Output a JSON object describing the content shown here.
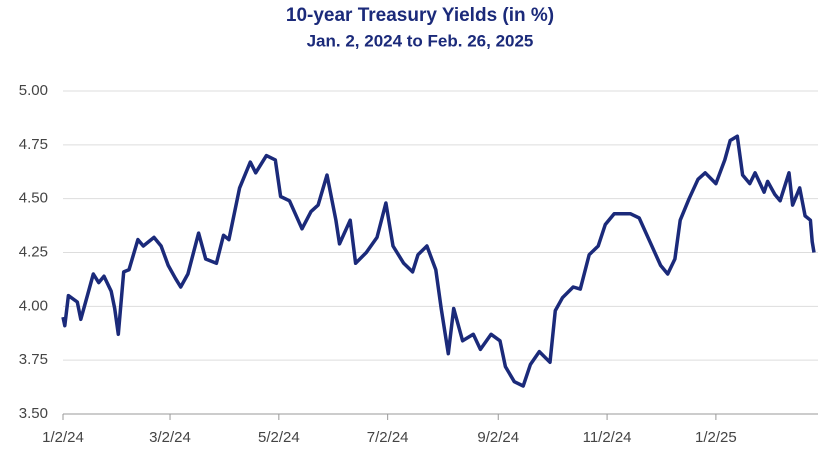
{
  "chart_data": {
    "type": "line",
    "title": "10-year Treasury Yields (in %)",
    "subtitle": "Jan. 2, 2024 to Feb. 26, 2025",
    "color": "#1b2a7a",
    "x": [
      "2024-01-02",
      "2024-01-03",
      "2024-01-05",
      "2024-01-10",
      "2024-01-12",
      "2024-01-16",
      "2024-01-19",
      "2024-01-22",
      "2024-01-25",
      "2024-01-29",
      "2024-01-31",
      "2024-02-02",
      "2024-02-05",
      "2024-02-08",
      "2024-02-13",
      "2024-02-16",
      "2024-02-22",
      "2024-02-26",
      "2024-03-01",
      "2024-03-05",
      "2024-03-08",
      "2024-03-12",
      "2024-03-18",
      "2024-03-22",
      "2024-03-28",
      "2024-04-01",
      "2024-04-04",
      "2024-04-10",
      "2024-04-16",
      "2024-04-19",
      "2024-04-25",
      "2024-04-30",
      "2024-05-03",
      "2024-05-08",
      "2024-05-15",
      "2024-05-20",
      "2024-05-24",
      "2024-05-29",
      "2024-06-03",
      "2024-06-05",
      "2024-06-11",
      "2024-06-14",
      "2024-06-20",
      "2024-06-26",
      "2024-07-01",
      "2024-07-05",
      "2024-07-11",
      "2024-07-16",
      "2024-07-19",
      "2024-07-24",
      "2024-07-29",
      "2024-08-01",
      "2024-08-05",
      "2024-08-08",
      "2024-08-13",
      "2024-08-19",
      "2024-08-23",
      "2024-08-29",
      "2024-09-03",
      "2024-09-06",
      "2024-09-11",
      "2024-09-16",
      "2024-09-20",
      "2024-09-25",
      "2024-10-01",
      "2024-10-04",
      "2024-10-08",
      "2024-10-14",
      "2024-10-18",
      "2024-10-23",
      "2024-10-28",
      "2024-11-01",
      "2024-11-06",
      "2024-11-12",
      "2024-11-15",
      "2024-11-20",
      "2024-11-26",
      "2024-12-02",
      "2024-12-06",
      "2024-12-10",
      "2024-12-13",
      "2024-12-18",
      "2024-12-23",
      "2024-12-27",
      "2025-01-02",
      "2025-01-07",
      "2025-01-10",
      "2025-01-14",
      "2025-01-17",
      "2025-01-21",
      "2025-01-24",
      "2025-01-29",
      "2025-01-31",
      "2025-02-04",
      "2025-02-07",
      "2025-02-12",
      "2025-02-14",
      "2025-02-18",
      "2025-02-21",
      "2025-02-24",
      "2025-02-25",
      "2025-02-26"
    ],
    "values": [
      3.95,
      3.91,
      4.05,
      4.02,
      3.94,
      4.06,
      4.15,
      4.11,
      4.14,
      4.07,
      3.99,
      3.87,
      4.16,
      4.17,
      4.31,
      4.28,
      4.32,
      4.28,
      4.19,
      4.13,
      4.09,
      4.15,
      4.34,
      4.22,
      4.2,
      4.33,
      4.31,
      4.55,
      4.67,
      4.62,
      4.7,
      4.68,
      4.51,
      4.49,
      4.36,
      4.44,
      4.47,
      4.61,
      4.4,
      4.29,
      4.4,
      4.2,
      4.25,
      4.32,
      4.48,
      4.28,
      4.2,
      4.16,
      4.24,
      4.28,
      4.17,
      3.99,
      3.78,
      3.99,
      3.84,
      3.87,
      3.8,
      3.87,
      3.84,
      3.72,
      3.65,
      3.63,
      3.73,
      3.79,
      3.74,
      3.98,
      4.04,
      4.09,
      4.08,
      4.24,
      4.28,
      4.38,
      4.43,
      4.43,
      4.43,
      4.41,
      4.3,
      4.19,
      4.15,
      4.22,
      4.4,
      4.5,
      4.59,
      4.62,
      4.57,
      4.68,
      4.77,
      4.79,
      4.61,
      4.57,
      4.62,
      4.53,
      4.58,
      4.52,
      4.49,
      4.62,
      4.47,
      4.55,
      4.42,
      4.4,
      4.3,
      4.25
    ],
    "xlim": [
      "2024-01-02",
      "2025-02-26"
    ],
    "xticks": [
      {
        "value": "2024-01-02",
        "label": "1/2/24"
      },
      {
        "value": "2024-03-02",
        "label": "3/2/24"
      },
      {
        "value": "2024-05-02",
        "label": "5/2/24"
      },
      {
        "value": "2024-07-02",
        "label": "7/2/24"
      },
      {
        "value": "2024-09-02",
        "label": "9/2/24"
      },
      {
        "value": "2024-11-02",
        "label": "11/2/24"
      },
      {
        "value": "2025-01-02",
        "label": "1/2/25"
      }
    ],
    "ylim": [
      3.5,
      5
    ],
    "yticks": [
      {
        "value": 3.5,
        "label": "3.50"
      },
      {
        "value": 3.75,
        "label": "3.75"
      },
      {
        "value": 4,
        "label": "4.00"
      },
      {
        "value": 4.25,
        "label": "4.25"
      },
      {
        "value": 4.5,
        "label": "4.50"
      },
      {
        "value": 4.75,
        "label": "4.75"
      },
      {
        "value": 5,
        "label": "5.00"
      }
    ],
    "grid": true
  }
}
